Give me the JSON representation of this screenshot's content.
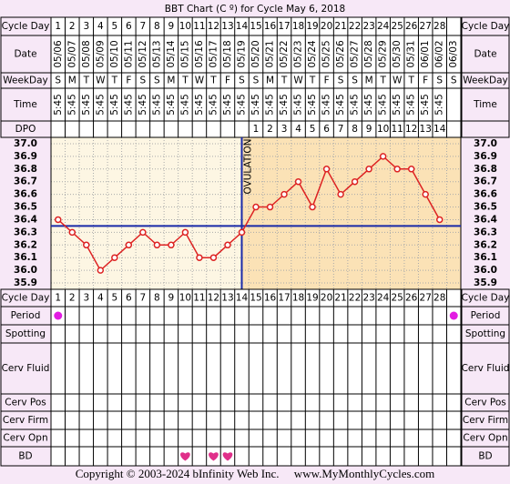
{
  "title": "BBT Chart (C º) for Cycle May 6, 2018",
  "labels": {
    "cycle_day": "Cycle Day",
    "date": "Date",
    "weekday": "WeekDay",
    "time": "Time",
    "dpo": "DPO",
    "period": "Period",
    "spotting": "Spotting",
    "cerv_fluid": "Cerv Fluid",
    "cerv_pos": "Cerv Pos",
    "cerv_firm": "Cerv Firm",
    "cerv_opn": "Cerv Opn",
    "bd": "BD"
  },
  "cycle_days": [
    1,
    2,
    3,
    4,
    5,
    6,
    7,
    8,
    9,
    10,
    11,
    12,
    13,
    14,
    15,
    16,
    17,
    18,
    19,
    20,
    21,
    22,
    23,
    24,
    25,
    26,
    27,
    28,
    null
  ],
  "dates": [
    "05/06",
    "05/07",
    "05/08",
    "05/09",
    "05/10",
    "05/11",
    "05/12",
    "05/13",
    "05/14",
    "05/15",
    "05/16",
    "05/17",
    "05/18",
    "05/19",
    "05/20",
    "05/21",
    "05/22",
    "05/23",
    "05/24",
    "05/25",
    "05/26",
    "05/27",
    "05/28",
    "05/29",
    "05/30",
    "05/31",
    "06/01",
    "06/02",
    "06/03"
  ],
  "weekdays": [
    "S",
    "M",
    "T",
    "W",
    "T",
    "F",
    "S",
    "S",
    "M",
    "T",
    "W",
    "T",
    "F",
    "S",
    "S",
    "M",
    "T",
    "W",
    "T",
    "F",
    "S",
    "S",
    "M",
    "T",
    "W",
    "T",
    "F",
    "S",
    "S"
  ],
  "times": [
    "5:45",
    "5:45",
    "5:45",
    "5:45",
    "5:45",
    "5:45",
    "5:45",
    "5:45",
    "5:45",
    "5:45",
    "5:45",
    "5:45",
    "5:45",
    "5:45",
    "5:45",
    "5:45",
    "5:45",
    "5:45",
    "5:45",
    "5:45",
    "5:45",
    "5:45",
    "5:45",
    "5:45",
    "5:45",
    "5:45",
    "5:45",
    "5:45",
    null
  ],
  "dpo": [
    null,
    null,
    null,
    null,
    null,
    null,
    null,
    null,
    null,
    null,
    null,
    null,
    null,
    null,
    1,
    2,
    3,
    4,
    5,
    6,
    7,
    8,
    9,
    10,
    11,
    12,
    13,
    14,
    null
  ],
  "chart_data": {
    "type": "line",
    "values": [
      36.4,
      36.3,
      36.2,
      36.0,
      36.1,
      36.2,
      36.3,
      36.2,
      36.2,
      36.3,
      36.1,
      36.1,
      36.2,
      36.3,
      36.5,
      36.5,
      36.6,
      36.7,
      36.5,
      36.8,
      36.6,
      36.7,
      36.8,
      36.9,
      36.8,
      36.8,
      36.6,
      36.4,
      null
    ],
    "color": "#dd2222",
    "ylim": [
      35.85,
      37.05
    ],
    "yticks": [
      {
        "value": 37,
        "label": "37.0"
      },
      36.9,
      36.8,
      36.7,
      36.6,
      36.5,
      36.4,
      36.3,
      36.2,
      36.1,
      {
        "value": 36,
        "label": "36.0"
      },
      35.9
    ],
    "grid": true,
    "coverline": 36.35,
    "coverline_color": "#1a2aa8",
    "ovulation_day": 14,
    "ovulation_label": "OVULATION"
  },
  "period": [
    true,
    false,
    false,
    false,
    false,
    false,
    false,
    false,
    false,
    false,
    false,
    false,
    false,
    false,
    false,
    false,
    false,
    false,
    false,
    false,
    false,
    false,
    false,
    false,
    false,
    false,
    false,
    false,
    true
  ],
  "bd": [
    false,
    false,
    false,
    false,
    false,
    false,
    false,
    false,
    false,
    true,
    false,
    true,
    true,
    false,
    false,
    false,
    false,
    false,
    false,
    false,
    false,
    false,
    false,
    false,
    false,
    false,
    false,
    false,
    false
  ],
  "footer": "Copyright © 2003-2024 bInfinity Web Inc.     www.MyMonthlyCycles.com"
}
